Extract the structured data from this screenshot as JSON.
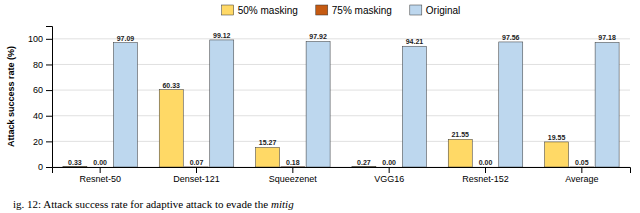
{
  "chart_data": {
    "type": "bar",
    "categories": [
      "Resnet-50",
      "Denset-121",
      "Squeezenet",
      "VGG16",
      "Resnet-152",
      "Average"
    ],
    "series": [
      {
        "name": "50% masking",
        "color": "#FFD966",
        "values": [
          0.33,
          60.33,
          15.27,
          0.27,
          21.55,
          19.55
        ],
        "value_labels": [
          "0.33",
          "60.33",
          "15.27",
          "0.27",
          "21.55",
          "19.55"
        ]
      },
      {
        "name": "75% masking",
        "color": "#C55A11",
        "values": [
          0.0,
          0.07,
          0.18,
          0.0,
          0.0,
          0.05
        ],
        "value_labels": [
          "0.00",
          "0.07",
          "0.18",
          "0.00",
          "0.00",
          "0.05"
        ]
      },
      {
        "name": "Original",
        "color": "#BDD7EE",
        "values": [
          97.09,
          99.12,
          97.92,
          94.21,
          97.56,
          97.18
        ],
        "value_labels": [
          "97.09",
          "99.12",
          "97.92",
          "94.21",
          "97.56",
          "97.18"
        ]
      }
    ],
    "ylabel": "Attack success rate (%)",
    "ylim": [
      0,
      110
    ],
    "yticks": [
      0,
      20,
      40,
      60,
      80,
      100
    ],
    "grid": true,
    "legend": "top",
    "data_labels": true,
    "annotations": [
      "ig. 12: Attack success rate for adaptive attack to evade the",
      "mitig"
    ]
  }
}
